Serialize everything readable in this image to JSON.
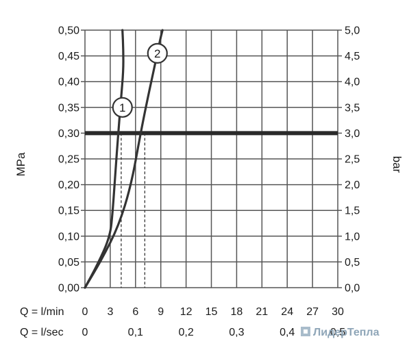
{
  "chart_data": {
    "type": "line",
    "y_left": {
      "label": "MPa",
      "range": [
        0,
        0.5
      ],
      "ticks": [
        0,
        0.05,
        0.1,
        0.15,
        0.2,
        0.25,
        0.3,
        0.35,
        0.4,
        0.45,
        0.5
      ],
      "tick_labels": [
        "0,00",
        "0,05",
        "0,10",
        "0,15",
        "0,20",
        "0,25",
        "0,30",
        "0,35",
        "0,40",
        "0,45",
        "0,50"
      ]
    },
    "y_right": {
      "label": "bar",
      "range": [
        0,
        5
      ],
      "ticks": [
        0,
        0.5,
        1,
        1.5,
        2,
        2.5,
        3,
        3.5,
        4,
        4.5,
        5
      ],
      "tick_labels": [
        "0,0",
        "0,5",
        "1,0",
        "1,5",
        "2,0",
        "2,5",
        "3,0",
        "3,5",
        "4,0",
        "4,5",
        "5,0"
      ]
    },
    "x_lmin": {
      "label": "Q = l/min",
      "range": [
        0,
        30
      ],
      "ticks": [
        0,
        3,
        6,
        9,
        12,
        15,
        18,
        21,
        24,
        27,
        30
      ],
      "tick_labels": [
        "0",
        "3",
        "6",
        "9",
        "12",
        "15",
        "18",
        "21",
        "24",
        "27",
        "30"
      ]
    },
    "x_lsec": {
      "label": "Q = l/sec",
      "ticks": [
        0,
        0.1,
        0.2,
        0.3,
        0.4,
        0.5
      ],
      "tick_labels": [
        "0",
        "0,1",
        "0,2",
        "0,3",
        "0,4",
        "0,5"
      ]
    },
    "grid": true,
    "reference_line": {
      "y": 0.3
    },
    "series": [
      {
        "marker_label": "1",
        "marker_at": {
          "x": 4.45,
          "y": 0.35
        },
        "points": [
          [
            0,
            0
          ],
          [
            1.5,
            0.045
          ],
          [
            3,
            0.1
          ],
          [
            3.3,
            0.15
          ],
          [
            3.6,
            0.22
          ],
          [
            3.95,
            0.3
          ],
          [
            4.3,
            0.37
          ],
          [
            4.55,
            0.42
          ],
          [
            4.55,
            0.46
          ],
          [
            4.45,
            0.5
          ]
        ],
        "dashed_drop_x": 4.3
      },
      {
        "marker_label": "2",
        "marker_at": {
          "x": 8.6,
          "y": 0.455
        },
        "points": [
          [
            0,
            0
          ],
          [
            2,
            0.055
          ],
          [
            4,
            0.12
          ],
          [
            5.5,
            0.2
          ],
          [
            6.6,
            0.3
          ],
          [
            7.6,
            0.38
          ],
          [
            8.4,
            0.44
          ],
          [
            8.9,
            0.48
          ],
          [
            9.2,
            0.5
          ]
        ],
        "dashed_drop_x": 7.1
      }
    ]
  },
  "watermark": {
    "text": "ЛидерТепла"
  },
  "colors": {
    "line": "#333333",
    "grid": "#555555",
    "reference": "#2a2a2a",
    "watermark": "#8fa6b8"
  }
}
